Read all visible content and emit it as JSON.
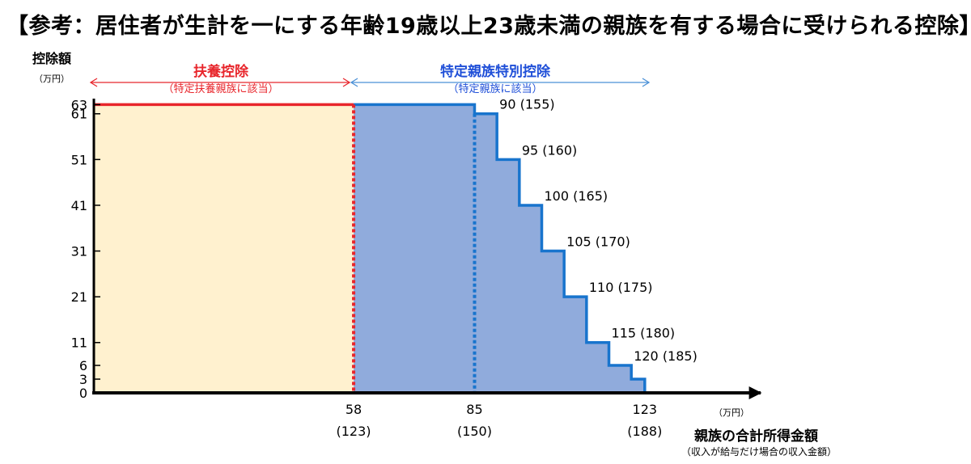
{
  "title": "【参考：居住者が生計を一にする年齢19歳以上23歳未満の親族を有する場合に受けられる控除】",
  "chart_data": {
    "type": "area",
    "title": "【参考：居住者が生計を一にする年齢19歳以上23歳未満の親族を有する場合に受けられる控除】",
    "ylabel": "控除額",
    "ylabel_unit": "（万円）",
    "xlabel": "親族の合計所得金額",
    "xlabel_sub": "（収入が給与だけ場合の収入金額）",
    "xlabel_unit": "（万円）",
    "ylim": [
      0,
      63
    ],
    "xlim": [
      0,
      145
    ],
    "yticks": [
      "0",
      "3",
      "6",
      "11",
      "21",
      "31",
      "41",
      "51",
      "61",
      "63"
    ],
    "xticks": [
      {
        "value": 58,
        "label": "58",
        "sub": "(123)",
        "color": "#e8262c"
      },
      {
        "value": 85,
        "label": "85",
        "sub": "(150)",
        "color": "#2e86c9"
      },
      {
        "value": 123,
        "label": "123",
        "sub": "(188)",
        "color": "#2e86c9"
      }
    ],
    "regions": [
      {
        "name": "扶養控除",
        "sub": "（特定扶養親族に該当）",
        "color": "#e8262c",
        "fill": "#fff1cf",
        "x": [
          0,
          58
        ],
        "value": 63
      },
      {
        "name": "特定親族特別控除",
        "sub": "（特定親族に該当）",
        "color": "#1f4fd8",
        "arrow_color": "#4a90d6",
        "fill": "#90abdc",
        "line_color": "#1874cd",
        "x": [
          58,
          123
        ]
      }
    ],
    "series": [
      {
        "name": "特定親族特別控除",
        "steps": [
          {
            "x0": 58,
            "x1": 85,
            "y": 63
          },
          {
            "x0": 85,
            "x1": 90,
            "y": 61
          },
          {
            "x0": 90,
            "x1": 95,
            "y": 51
          },
          {
            "x0": 95,
            "x1": 100,
            "y": 41
          },
          {
            "x0": 100,
            "x1": 105,
            "y": 31
          },
          {
            "x0": 105,
            "x1": 110,
            "y": 21
          },
          {
            "x0": 110,
            "x1": 115,
            "y": 11
          },
          {
            "x0": 115,
            "x1": 120,
            "y": 6
          },
          {
            "x0": 120,
            "x1": 123,
            "y": 3
          },
          {
            "x0": 123,
            "x1": 130,
            "y": 0
          }
        ]
      }
    ],
    "annotations": [
      {
        "text": "90 (155)",
        "x": 90,
        "y": 61
      },
      {
        "text": "95 (160)",
        "x": 95,
        "y": 51
      },
      {
        "text": "100 (165)",
        "x": 100,
        "y": 41
      },
      {
        "text": "105 (170)",
        "x": 105,
        "y": 31
      },
      {
        "text": "110 (175)",
        "x": 110,
        "y": 21
      },
      {
        "text": "115 (180)",
        "x": 115,
        "y": 11
      },
      {
        "text": "120 (185)",
        "x": 120,
        "y": 6
      }
    ]
  }
}
